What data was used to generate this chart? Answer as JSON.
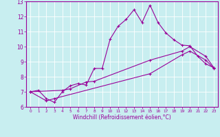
{
  "xlabel": "Windchill (Refroidissement éolien,°C)",
  "bg_color": "#c8eef0",
  "line_color": "#990099",
  "border_color": "#990099",
  "xlim": [
    -0.5,
    23.5
  ],
  "ylim": [
    6,
    13
  ],
  "xticks": [
    0,
    1,
    2,
    3,
    4,
    5,
    6,
    7,
    8,
    9,
    10,
    11,
    12,
    13,
    14,
    15,
    16,
    17,
    18,
    19,
    20,
    21,
    22,
    23
  ],
  "yticks": [
    6,
    7,
    8,
    9,
    10,
    11,
    12,
    13
  ],
  "line1": {
    "x": [
      0,
      1,
      2,
      3,
      4,
      5,
      6,
      7,
      8,
      9,
      10,
      11,
      12,
      13,
      14,
      15,
      16,
      17,
      18,
      19,
      20,
      21,
      22,
      23
    ],
    "y": [
      7.0,
      7.1,
      6.55,
      6.3,
      7.0,
      7.4,
      7.55,
      7.45,
      8.55,
      8.55,
      10.5,
      11.35,
      11.8,
      12.45,
      11.6,
      12.75,
      11.6,
      10.9,
      10.45,
      10.1,
      10.05,
      9.35,
      8.85,
      8.6
    ]
  },
  "line2": {
    "x": [
      0,
      4,
      5,
      7,
      8,
      15,
      19,
      20,
      22,
      23
    ],
    "y": [
      7.0,
      7.1,
      7.2,
      7.65,
      7.7,
      9.1,
      9.7,
      10.0,
      9.35,
      8.6
    ]
  },
  "line3": {
    "x": [
      0,
      2,
      3,
      15,
      19,
      20,
      22,
      23
    ],
    "y": [
      7.0,
      6.4,
      6.55,
      8.2,
      9.45,
      9.7,
      9.1,
      8.55
    ]
  }
}
